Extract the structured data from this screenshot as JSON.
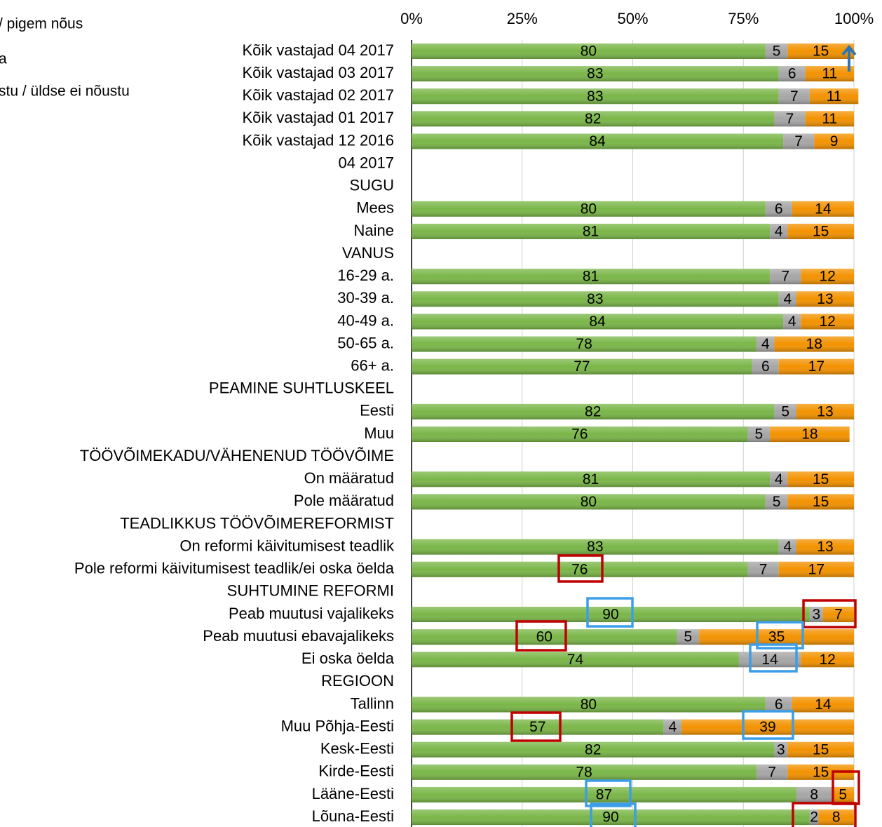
{
  "chart_data": {
    "type": "stacked_barh",
    "categories": [
      "Kõik vastajad 04 2017",
      "Kõik vastajad 03 2017",
      "Kõik vastajad 02 2017",
      "Kõik vastajad 01 2017",
      "Kõik vastajad 12 2016",
      "04 2017",
      "SUGU",
      "Mees",
      "Naine",
      "VANUS",
      "16-29 a.",
      "30-39 a.",
      "40-49 a.",
      "50-65 a.",
      "66+ a.",
      "PEAMINE SUHTLUSKEEL",
      "Eesti",
      "Muu",
      "TÖÖVÕIMEKADU/VÄHENENUD TÖÖVÕIME",
      "On määratud",
      "Pole määratud",
      "TEADLIKKUS TÖÖVÕIMEREFORMIST",
      "On reformi käivitumisest teadlik",
      "Pole reformi käivitumisest teadlik/ei oska öelda",
      "SUHTUMINE REFORMI",
      "Peab muutusi vajalikeks",
      "Peab muutusi ebavajalikeks",
      "Ei oska öelda",
      "REGIOON",
      "Tallinn",
      "Muu Põhja-Eesti",
      "Kesk-Eesti",
      "Kirde-Eesti",
      "Lääne-Eesti",
      "Lõuna-Eesti"
    ],
    "series": [
      {
        "name": "/ pigem nõus",
        "color": "#7ab648",
        "values": [
          80,
          83,
          83,
          82,
          84,
          null,
          null,
          80,
          81,
          null,
          81,
          83,
          84,
          78,
          77,
          null,
          82,
          76,
          null,
          81,
          80,
          null,
          83,
          76,
          null,
          90,
          60,
          74,
          null,
          80,
          57,
          82,
          78,
          87,
          90
        ]
      },
      {
        "name": "a",
        "color": "#a6a6a6",
        "values": [
          5,
          6,
          7,
          7,
          7,
          null,
          null,
          6,
          4,
          null,
          7,
          4,
          4,
          4,
          6,
          null,
          5,
          5,
          null,
          4,
          5,
          null,
          4,
          7,
          null,
          3,
          5,
          14,
          null,
          6,
          4,
          3,
          7,
          8,
          2
        ]
      },
      {
        "name": "stu / üldse ei nõustu",
        "color": "#f39200",
        "values": [
          15,
          11,
          11,
          11,
          9,
          null,
          null,
          14,
          15,
          null,
          12,
          13,
          12,
          18,
          17,
          null,
          13,
          18,
          null,
          15,
          15,
          null,
          13,
          17,
          null,
          7,
          35,
          12,
          null,
          14,
          39,
          15,
          15,
          5,
          8
        ]
      }
    ],
    "xlim": [
      0,
      100
    ],
    "xticks": [
      {
        "value": 0,
        "label": "0%"
      },
      {
        "value": 25,
        "label": "25%"
      },
      {
        "value": 50,
        "label": "50%"
      },
      {
        "value": 75,
        "label": "75%"
      },
      {
        "value": 100,
        "label": "100%"
      }
    ],
    "grid": true
  }
}
